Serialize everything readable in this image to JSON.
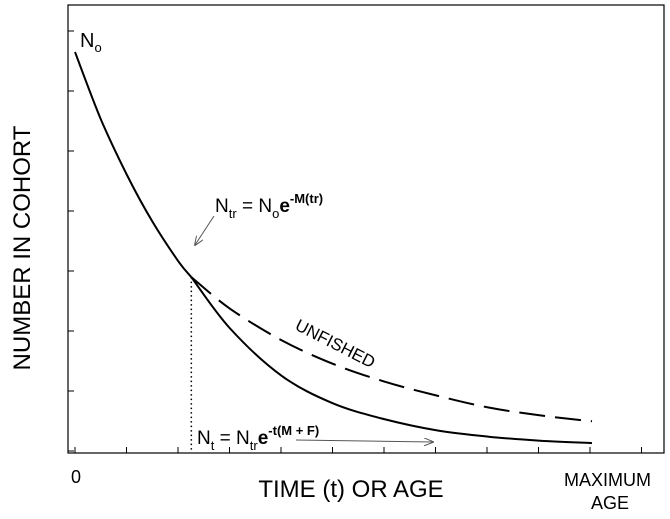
{
  "chart_data": {
    "type": "line",
    "xlabel": "TIME (t) OR AGE",
    "ylabel": "NUMBER IN COHORT",
    "x_tick_labels": {
      "start": "0",
      "end_line1": "MAXIMUM",
      "end_line2": "AGE"
    },
    "xlim": [
      0,
      1
    ],
    "ylim": [
      0,
      1
    ],
    "grid": false,
    "t_recruit": 0.225,
    "series": [
      {
        "name": "UNFISHED",
        "style": "dashed",
        "x": [
          0,
          0.05,
          0.1,
          0.15,
          0.2,
          0.225,
          0.3,
          0.4,
          0.5,
          0.6,
          0.7,
          0.8,
          0.9,
          1.0
        ],
        "y": [
          1.0,
          0.83,
          0.69,
          0.57,
          0.47,
          0.43,
          0.35,
          0.27,
          0.21,
          0.165,
          0.13,
          0.1,
          0.08,
          0.065
        ]
      },
      {
        "name": "",
        "style": "solid",
        "x": [
          0.225,
          0.3,
          0.4,
          0.5,
          0.6,
          0.7,
          0.8,
          0.9,
          1.0
        ],
        "y": [
          0.43,
          0.3,
          0.18,
          0.11,
          0.07,
          0.042,
          0.026,
          0.016,
          0.01
        ]
      }
    ],
    "annotations": {
      "n0": {
        "main": "N",
        "sub": "o"
      },
      "ntr": {
        "lhs": "N",
        "lhs_sub": "tr",
        "eq": " = ",
        "rhs": "N",
        "rhs_sub": "o",
        "e": "e",
        "exp": "-M(tr)"
      },
      "nt": {
        "lhs": "N",
        "lhs_sub": "t",
        "eq": " = ",
        "rhs": "N",
        "rhs_sub": "tr",
        "e": "e",
        "exp": "-t(M + F)"
      },
      "unfished": "UNFISHED"
    }
  }
}
